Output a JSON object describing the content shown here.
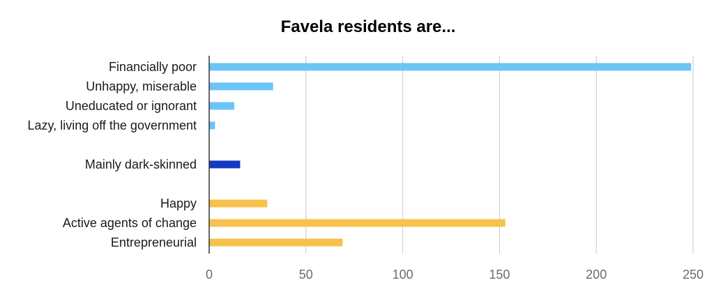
{
  "chart_data": {
    "type": "bar",
    "orientation": "horizontal",
    "title": "Favela residents are...",
    "xlabel": "",
    "ylabel": "",
    "xlim": [
      0,
      250
    ],
    "x_ticks": [
      "0",
      "50",
      "100",
      "150",
      "200",
      "250"
    ],
    "grid": true,
    "legend": "none",
    "categories": [
      "Financially poor",
      "Unhappy, miserable",
      "Uneducated or ignorant",
      "Lazy, living off the government",
      "Mainly dark-skinned",
      "Happy",
      "Active agents of change",
      "Entrepreneurial"
    ],
    "values": [
      249,
      33,
      13,
      3,
      16,
      30,
      153,
      69
    ],
    "bar_colors": [
      "#6cc5f6",
      "#6cc5f6",
      "#6cc5f6",
      "#6cc5f6",
      "#1439c2",
      "#f7c24c",
      "#f7c24c",
      "#f7c24c"
    ],
    "groups": [
      {
        "members": [
          0,
          1,
          2,
          3
        ],
        "color": "#6cc5f6"
      },
      {
        "members": [
          4
        ],
        "color": "#1439c2"
      },
      {
        "members": [
          5,
          6,
          7
        ],
        "color": "#f7c24c"
      }
    ]
  }
}
